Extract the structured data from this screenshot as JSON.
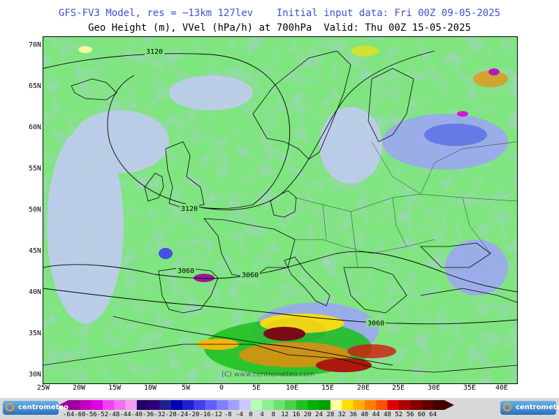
{
  "header": {
    "title_line1": "GFS-FV3 Model, res = ~13km 127lev    Initial input data: Fri 00Z 09-05-2025",
    "title_line2": "Geo Height (m), VVel (hPa/h) at 700hPa  Valid: Thu 00Z 15-05-2025"
  },
  "map": {
    "lat_labels": [
      "70N",
      "65N",
      "60N",
      "55N",
      "50N",
      "45N",
      "40N",
      "35N",
      "30N"
    ],
    "lon_labels": [
      "25W",
      "20W",
      "15W",
      "10W",
      "5W",
      "0",
      "5E",
      "10E",
      "15E",
      "20E",
      "25E",
      "30E",
      "35E",
      "40E"
    ],
    "contour_labels": [
      "3120",
      "3120",
      "3060",
      "3060",
      "3060"
    ],
    "watermark": "(C) www.centrometeo.com",
    "base_color": "#7fe57f"
  },
  "colorbar": {
    "ticks": [
      "-64",
      "-60",
      "-56",
      "-52",
      "-48",
      "-44",
      "-40",
      "-36",
      "-32",
      "-28",
      "-24",
      "-20",
      "-16",
      "-12",
      "-8",
      "-4",
      "0",
      "4",
      "8",
      "12",
      "16",
      "20",
      "24",
      "28",
      "32",
      "36",
      "40",
      "44",
      "48",
      "52",
      "56",
      "60",
      "64"
    ],
    "colors": [
      "#9c009c",
      "#c000c0",
      "#e000e0",
      "#f040f0",
      "#f070f0",
      "#f0a0f0",
      "#200060",
      "#30007c",
      "#202090",
      "#0000b0",
      "#2020d0",
      "#4040f0",
      "#6060ff",
      "#8080ff",
      "#a0a0ff",
      "#c8c8ff",
      "#b4ffb4",
      "#8ef08e",
      "#6ee06e",
      "#4cd04c",
      "#22c022",
      "#00b000",
      "#00a000",
      "#ffffa0",
      "#ffe000",
      "#ffb000",
      "#ff8000",
      "#ff5000",
      "#e00000",
      "#b00000",
      "#800000",
      "#600000",
      "#400000"
    ],
    "logo_text": "centrometeo"
  }
}
